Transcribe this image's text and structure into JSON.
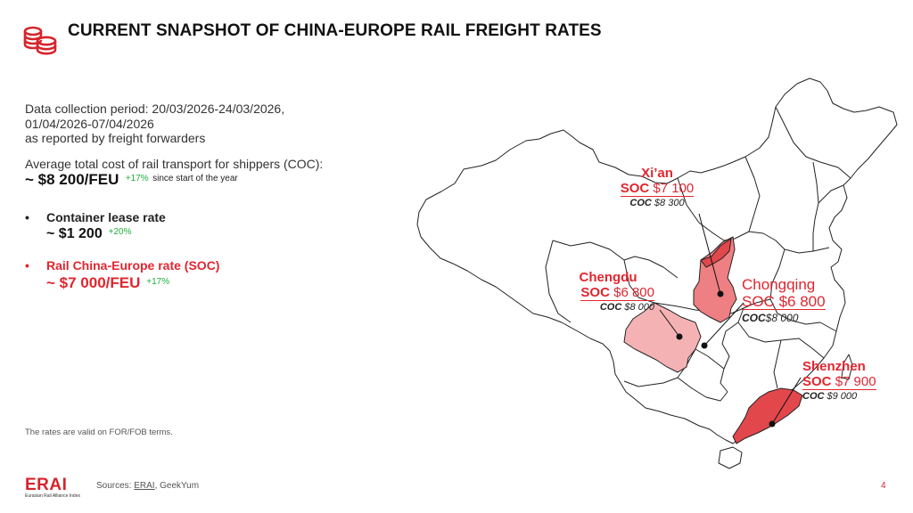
{
  "header": {
    "title": "CURRENT SNAPSHOT OF CHINA-EUROPE RAIL FREIGHT RATES"
  },
  "summary": {
    "period_line1": "Data collection period: 20/03/2026-24/03/2026,",
    "period_line2": "01/04/2026-07/04/2026",
    "period_line3": "as reported by freight forwarders",
    "avg_label": "Average total cost of rail transport for shippers (COC):",
    "avg_value": "~ $8 200/FEU",
    "avg_change": "+17%",
    "avg_change_note": "since start of the year"
  },
  "bullets": [
    {
      "label": "Container lease rate",
      "value": "~ $1 200",
      "change": "+20%"
    },
    {
      "label": "Rail China-Europe rate (SOC)",
      "value": "~ $7 000/FEU",
      "change": "+17%"
    }
  ],
  "cities": {
    "xian": {
      "name": "Xi’an",
      "soc_label": "SOC",
      "soc_value": "$7 100",
      "coc_label": "COC",
      "coc_value": "$8 300"
    },
    "chengdu": {
      "name": "Chengdu",
      "soc_label": "SOC",
      "soc_value": "$6 800",
      "coc_label": "COC",
      "coc_value": "$8 000"
    },
    "chongqing": {
      "name": "Chongqing",
      "soc_label": "SOC",
      "soc_value": "$6 800",
      "coc_label": "COC",
      "coc_value": "$8 000"
    },
    "shenzhen": {
      "name": "Shenzhen",
      "soc_label": "SOC",
      "soc_value": "$7 900",
      "coc_label": "COC",
      "coc_value": "$9 000"
    }
  },
  "footer": {
    "valid_note": "The rates are valid on FOR/FOB terms.",
    "sources_prefix": "Sources:",
    "source_link": "ERAI",
    "sources_rest": ", GeekYum",
    "page_number": "4",
    "logo_word": "ERAI",
    "logo_sub": "Eurasian Rail Alliance Index"
  },
  "colors": {
    "accent_red": "#e0262f",
    "positive_green": "#1fae3a",
    "region_dark": "#e2474c",
    "region_mid": "#ee7f82",
    "region_light": "#f5b2b4"
  },
  "icons": {
    "header_icon": "coins-icon"
  }
}
